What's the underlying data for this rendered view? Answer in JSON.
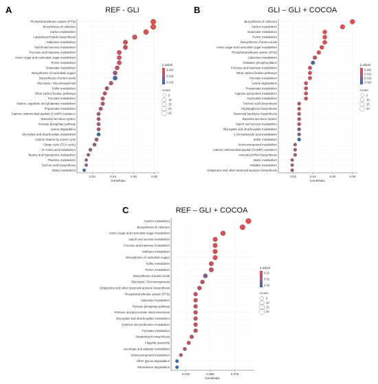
{
  "figure_labels": [
    "A",
    "B",
    "C"
  ],
  "chart_data": [
    {
      "type": "scatter",
      "panel_label": "A",
      "title": "REF - GLI",
      "xlabel": "GeneRatio",
      "x_ticks": [
        "0.02",
        "0.04",
        "0.06",
        "0.08"
      ],
      "xlim": [
        0.005,
        0.085
      ],
      "colorbar": {
        "title": "p.adjust",
        "ticks": [
          "0.005",
          "0.010",
          "0.015"
        ],
        "low_color": "#e05050",
        "high_color": "#2b6cb0"
      },
      "size_legend": {
        "title": "Count",
        "labels": [
          "5",
          "10",
          "15",
          "20",
          "25"
        ]
      },
      "categories": [
        "Phosphotransferase system (PTS)",
        "Biosynthesis of cofactors",
        "Carbon metabolism",
        "Lipopolysaccharide biosynthesis",
        "Galactose metabolism",
        "Starch and sucrose metabolism",
        "Fructose and mannose metabolism",
        "Amino sugar and nucleotide sugar metabolism",
        "Purine metabolism",
        "Butanoate metabolism",
        "Biosynthesis of nucleotide sugars",
        "Biosynthesis of amino acids",
        "Glycolysis / Gluconeogenesis",
        "Sulfur metabolism",
        "Other carbon fixation pathways",
        "Pyruvate metabolism",
        "Alanine, aspartate and glutamate metabolism",
        "Propanoate metabolism",
        "Cationic antimicrobial peptide (CAMP) resistance",
        "Bacterial secretion system",
        "Pentose phosphate pathway",
        "Lysine degradation",
        "Glyoxylate and dicarboxylate metabolism",
        "Carbon fixation by Calvin cycle",
        "Citrate cycle (TCA cycle)",
        "D-Amino acid metabolism",
        "Taurine and hypotaurine metabolism",
        "Thiamine metabolism",
        "Teichoic acid biosynthesis",
        "Biotin metabolism"
      ],
      "x": [
        0.079,
        0.079,
        0.072,
        0.061,
        0.052,
        0.052,
        0.046,
        0.046,
        0.046,
        0.044,
        0.042,
        0.042,
        0.038,
        0.034,
        0.032,
        0.03,
        0.03,
        0.028,
        0.026,
        0.026,
        0.026,
        0.026,
        0.026,
        0.024,
        0.022,
        0.018,
        0.016,
        0.014,
        0.014,
        0.012
      ],
      "p_adjust": [
        0.004,
        0.004,
        0.005,
        0.005,
        0.006,
        0.006,
        0.006,
        0.006,
        0.006,
        0.007,
        0.009,
        0.015,
        0.007,
        0.008,
        0.007,
        0.007,
        0.007,
        0.008,
        0.008,
        0.008,
        0.008,
        0.008,
        0.015,
        0.009,
        0.01,
        0.01,
        0.01,
        0.01,
        0.01,
        0.016
      ],
      "count": [
        26,
        26,
        24,
        20,
        17,
        17,
        15,
        15,
        15,
        14,
        14,
        14,
        12,
        11,
        10,
        10,
        10,
        9,
        8,
        8,
        8,
        8,
        8,
        8,
        7,
        6,
        5,
        4,
        4,
        4
      ]
    },
    {
      "type": "scatter",
      "panel_label": "B",
      "title": "GLI – GLI + COCOA",
      "xlabel": "GeneRatio",
      "x_ticks": [
        "0.02",
        "0.04",
        "0.06",
        "0.08"
      ],
      "xlim": [
        0.005,
        0.085
      ],
      "colorbar": {
        "title": "p.adjust",
        "ticks": [
          "0.005",
          "0.010",
          "0.015",
          "0.020"
        ],
        "low_color": "#e05050",
        "high_color": "#2b6cb0"
      },
      "size_legend": {
        "title": "Count",
        "labels": [
          "5",
          "10",
          "15",
          "20"
        ]
      },
      "categories": [
        "Biosynthesis of cofactors",
        "Carbon metabolism",
        "Butanoate metabolism",
        "Purine metabolism",
        "Biosynthesis of amino acids",
        "Amino sugar and nucleotide sugar metabolism",
        "Phosphotransferase system (PTS)",
        "Galactose metabolism",
        "Oxidative phosphorylation",
        "Fructose and mannose metabolism",
        "Other carbon fixation pathways",
        "Pyruvate metabolism",
        "Lysine degradation",
        "Propanoate metabolism",
        "Arginine and proline metabolism",
        "Nucleotide metabolism",
        "Teichoic acid biosynthesis",
        "Peptidoglycan biosynthesis",
        "Terpenoid backbone biosynthesis",
        "Bacterial secretion system",
        "Starch and sucrose metabolism",
        "Glyoxylate and dicarboxylate metabolism",
        "2-Oxocarboxylic acid metabolism",
        "Sulfur metabolism",
        "Selenocompound metabolism",
        "Cationic antimicrobial peptide (CAMP) resistance",
        "Aminoacyl-tRNA biosynthesis",
        "Biotin metabolism",
        "Histidine metabolism",
        "Ubiquinone and other terpenoid-quinone biosynthesis"
      ],
      "x": [
        0.08,
        0.07,
        0.052,
        0.052,
        0.052,
        0.049,
        0.046,
        0.042,
        0.04,
        0.037,
        0.037,
        0.037,
        0.033,
        0.033,
        0.033,
        0.033,
        0.026,
        0.026,
        0.026,
        0.026,
        0.026,
        0.026,
        0.026,
        0.026,
        0.022,
        0.022,
        0.022,
        0.019,
        0.019,
        0.019
      ],
      "p_adjust": [
        0.004,
        0.004,
        0.005,
        0.005,
        0.005,
        0.005,
        0.006,
        0.008,
        0.022,
        0.007,
        0.007,
        0.007,
        0.008,
        0.008,
        0.008,
        0.008,
        0.009,
        0.009,
        0.009,
        0.009,
        0.01,
        0.015,
        0.016,
        0.024,
        0.01,
        0.011,
        0.011,
        0.012,
        0.013,
        0.014
      ],
      "count": [
        23,
        20,
        15,
        15,
        15,
        14,
        13,
        12,
        11,
        10,
        10,
        10,
        9,
        9,
        9,
        9,
        7,
        7,
        7,
        7,
        7,
        7,
        7,
        7,
        6,
        6,
        6,
        5,
        5,
        5
      ]
    },
    {
      "type": "scatter",
      "panel_label": "C",
      "title": "REF – GLI + COCOA",
      "xlabel": "GeneRatio",
      "x_ticks": [
        "0.025",
        "0.050",
        "0.075"
      ],
      "xlim": [
        0.01,
        0.095
      ],
      "colorbar": {
        "title": "p.adjust",
        "ticks": [
          "0.01",
          "0.02",
          "0.03"
        ],
        "low_color": "#e05050",
        "high_color": "#2b6cb0"
      },
      "size_legend": {
        "title": "Count",
        "labels": [
          "5",
          "10",
          "15",
          "20"
        ]
      },
      "categories": [
        "Carbon metabolism",
        "Biosynthesis of cofactors",
        "Amino sugar and nucleotide sugar metabolism",
        "Starch and sucrose metabolism",
        "Fructose and mannose metabolism",
        "Methane metabolism",
        "Biosynthesis of nucleotide sugars",
        "Sulfur metabolism",
        "Purine metabolism",
        "Biosynthesis of amino acids",
        "Glycolysis / Gluconeogenesis",
        "Ubiquinone and other terpenoid-quinone biosynthesis",
        "Phosphotransferase system (PTS)",
        "Galactose metabolism",
        "Pentose phosphate pathway",
        "Pentose and glucuronate interconversions",
        "Glyoxylate and dicarboxylate metabolism",
        "Cysteine and methionine metabolism",
        "Pyruvate metabolism",
        "Streptomycin biosynthesis",
        "Flagellar assembly",
        "Ascorbate and aldarate metabolism",
        "Selenocompound metabolism",
        "Other glycan degradation",
        "Nitrotoluene degradation"
      ],
      "x": [
        0.089,
        0.083,
        0.063,
        0.055,
        0.055,
        0.055,
        0.055,
        0.051,
        0.051,
        0.045,
        0.042,
        0.039,
        0.035,
        0.035,
        0.035,
        0.035,
        0.035,
        0.035,
        0.035,
        0.031,
        0.028,
        0.024,
        0.02,
        0.016,
        0.016
      ],
      "p_adjust": [
        0.005,
        0.006,
        0.007,
        0.008,
        0.008,
        0.008,
        0.008,
        0.009,
        0.01,
        0.02,
        0.012,
        0.013,
        0.01,
        0.01,
        0.01,
        0.011,
        0.011,
        0.011,
        0.012,
        0.012,
        0.012,
        0.013,
        0.014,
        0.03,
        0.033
      ],
      "count": [
        22,
        20,
        16,
        14,
        14,
        14,
        14,
        13,
        13,
        11,
        10,
        10,
        9,
        9,
        9,
        9,
        9,
        9,
        9,
        8,
        7,
        6,
        5,
        4,
        4
      ]
    }
  ]
}
